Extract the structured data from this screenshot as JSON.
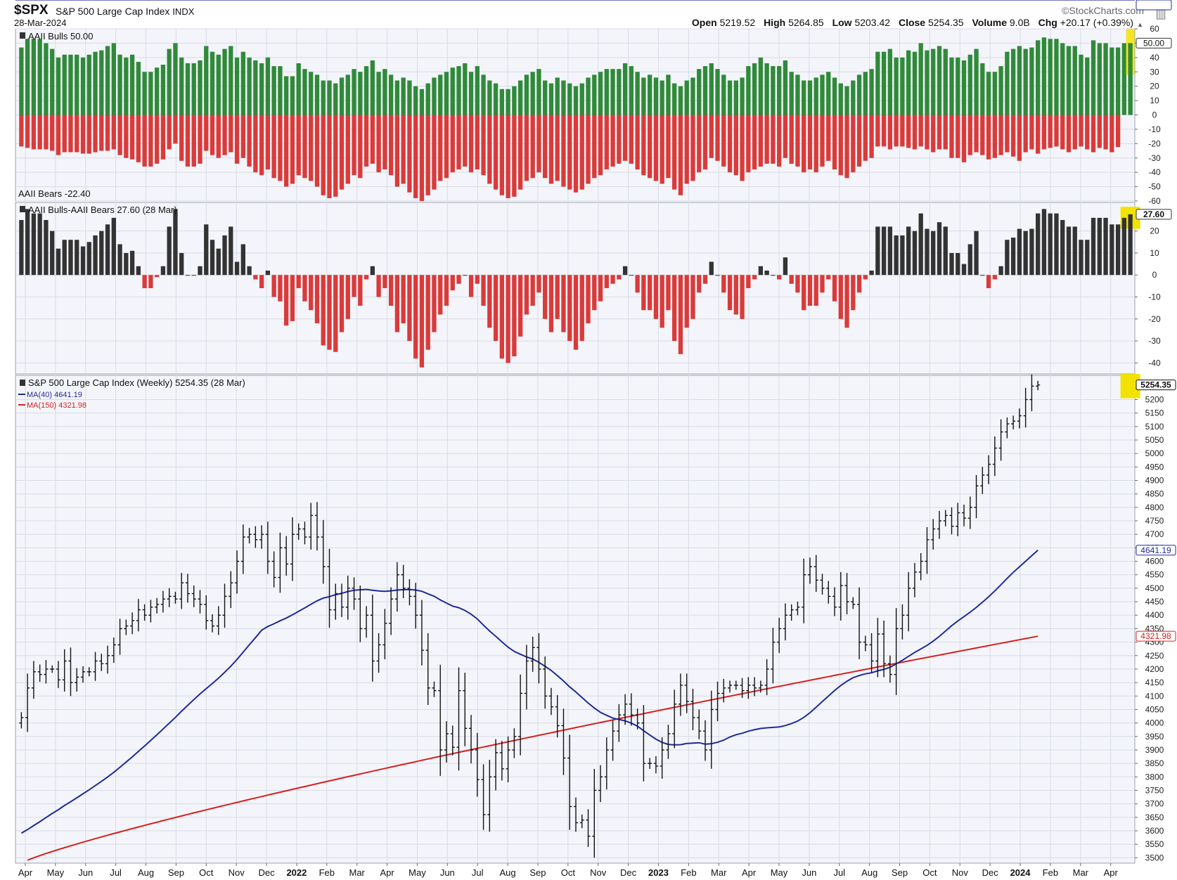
{
  "header": {
    "symbol": "$SPX",
    "name": "S&P 500 Large Cap Index",
    "exchange": "INDX",
    "date": "28-Mar-2024",
    "brand": "©StockCharts.com",
    "open_label": "Open",
    "open": "5219.52",
    "high_label": "High",
    "high": "5264.85",
    "low_label": "Low",
    "low": "5203.42",
    "close_label": "Close",
    "close": "5254.35",
    "volume_label": "Volume",
    "volume": "9.0B",
    "chg_label": "Chg",
    "chg": "+20.17 (+0.39%)"
  },
  "colors": {
    "bulls": "#2f8a3a",
    "bears": "#d93b3b",
    "spread_pos": "#333333",
    "spread_neg": "#d93b3b",
    "ma40": "#1f2a9c",
    "ma150": "#d62020",
    "highlight": "#f2e200",
    "panel_bg": "#f4f5fa",
    "grid": "#d8dbe6"
  },
  "chart_data": [
    {
      "type": "bar",
      "panel": "sentiment",
      "legend": [
        "AAII Bulls 50.00",
        "AAII Bears -22.40"
      ],
      "ylim": [
        -60,
        60
      ],
      "yticks": [
        60,
        50,
        40,
        30,
        20,
        10,
        0,
        -10,
        -20,
        -30,
        -40,
        -50,
        -60
      ],
      "last_labels": [
        "50.00",
        "-22.40"
      ],
      "x": "weekly, Apr 2021 – Mar 2024",
      "series": [
        {
          "name": "AAII Bulls",
          "values": [
            47,
            53,
            53,
            53,
            50,
            46,
            40,
            42,
            42,
            42,
            40,
            42,
            44,
            45,
            48,
            50,
            42,
            40,
            42,
            37,
            30,
            30,
            33,
            35,
            46,
            50,
            40,
            36,
            36,
            38,
            48,
            44,
            42,
            46,
            48,
            40,
            44,
            40,
            38,
            36,
            40,
            34,
            34,
            27,
            27,
            36,
            32,
            30,
            28,
            24,
            24,
            22,
            26,
            28,
            32,
            30,
            34,
            38,
            30,
            32,
            28,
            24,
            26,
            24,
            20,
            18,
            22,
            26,
            28,
            30,
            33,
            34,
            36,
            30,
            34,
            28,
            24,
            22,
            18,
            18,
            20,
            24,
            28,
            30,
            32,
            24,
            22,
            26,
            24,
            22,
            20,
            22,
            26,
            28,
            30,
            32,
            32,
            32,
            36,
            34,
            30,
            26,
            28,
            26,
            24,
            28,
            22,
            20,
            24,
            26,
            32,
            34,
            36,
            32,
            28,
            24,
            24,
            26,
            34,
            36,
            40,
            36,
            34,
            34,
            38,
            30,
            28,
            24,
            24,
            26,
            28,
            30,
            26,
            22,
            20,
            24,
            28,
            30,
            32,
            44,
            44,
            46,
            40,
            40,
            45,
            44,
            50,
            45,
            46,
            48,
            46,
            40,
            40,
            38,
            42,
            46,
            36,
            30,
            30,
            34,
            44,
            46,
            48,
            46,
            47,
            52,
            54,
            53,
            53,
            50,
            48,
            48,
            42,
            40,
            52,
            50,
            50,
            47,
            47,
            50,
            50
          ],
          "note": "approximate weekly readings"
        },
        {
          "name": "AAII Bears",
          "values": [
            -22,
            -23,
            -24,
            -24,
            -24,
            -25,
            -28,
            -26,
            -26,
            -26,
            -27,
            -27,
            -26,
            -25,
            -25,
            -24,
            -28,
            -30,
            -31,
            -33,
            -36,
            -36,
            -34,
            -31,
            -24,
            -20,
            -32,
            -36,
            -36,
            -34,
            -25,
            -28,
            -30,
            -28,
            -26,
            -34,
            -30,
            -36,
            -40,
            -42,
            -38,
            -44,
            -46,
            -50,
            -48,
            -42,
            -44,
            -46,
            -50,
            -56,
            -58,
            -57,
            -52,
            -48,
            -42,
            -44,
            -36,
            -34,
            -40,
            -38,
            -42,
            -50,
            -48,
            -54,
            -58,
            -60,
            -56,
            -52,
            -46,
            -44,
            -40,
            -38,
            -36,
            -40,
            -38,
            -42,
            -48,
            -52,
            -56,
            -58,
            -57,
            -52,
            -46,
            -44,
            -40,
            -44,
            -48,
            -46,
            -50,
            -52,
            -54,
            -52,
            -48,
            -44,
            -42,
            -38,
            -36,
            -34,
            -32,
            -34,
            -38,
            -42,
            -44,
            -46,
            -48,
            -44,
            -52,
            -56,
            -48,
            -46,
            -40,
            -38,
            -30,
            -32,
            -36,
            -40,
            -42,
            -46,
            -40,
            -38,
            -36,
            -34,
            -34,
            -36,
            -30,
            -34,
            -36,
            -40,
            -38,
            -40,
            -36,
            -32,
            -38,
            -42,
            -44,
            -40,
            -36,
            -32,
            -30,
            -22,
            -22,
            -24,
            -22,
            -22,
            -23,
            -24,
            -22,
            -24,
            -26,
            -24,
            -24,
            -30,
            -30,
            -33,
            -28,
            -26,
            -28,
            -31,
            -30,
            -28,
            -26,
            -29,
            -32,
            -26,
            -24,
            -27,
            -24,
            -23,
            -22,
            -24,
            -26,
            -24,
            -22,
            -24,
            -26,
            -23,
            -24,
            -26,
            -22.4
          ]
        }
      ]
    },
    {
      "type": "bar",
      "panel": "spread",
      "legend": [
        "AAII Bulls-AAII Bears 27.60 (28 Mar)"
      ],
      "ylim": [
        -45,
        33
      ],
      "yticks": [
        20,
        10,
        0,
        -10,
        -20,
        -30,
        -40
      ],
      "last_label": "27.60",
      "series": [
        {
          "name": "AAII Bulls-AAII Bears",
          "values": [
            25,
            30,
            28,
            28,
            25,
            20,
            12,
            16,
            16,
            16,
            13,
            15,
            18,
            20,
            23,
            26,
            14,
            10,
            11,
            4,
            -6,
            -6,
            -1,
            4,
            22,
            30,
            10,
            0,
            0,
            4,
            23,
            16,
            12,
            18,
            22,
            6,
            14,
            4,
            -2,
            -6,
            2,
            -10,
            -12,
            -23,
            -21,
            -6,
            -12,
            -16,
            -22,
            -32,
            -34,
            -35,
            -26,
            -20,
            -10,
            -14,
            -2,
            4,
            -10,
            -6,
            -14,
            -26,
            -22,
            -30,
            -38,
            -42,
            -34,
            -26,
            -18,
            -14,
            -7,
            -4,
            0,
            -10,
            -4,
            -14,
            -24,
            -30,
            -38,
            -40,
            -37,
            -28,
            -18,
            -14,
            -8,
            -20,
            -26,
            -20,
            -26,
            -30,
            -34,
            -30,
            -22,
            -16,
            -12,
            -6,
            -4,
            -2,
            4,
            0,
            -8,
            -16,
            -16,
            -20,
            -24,
            -16,
            -30,
            -36,
            -24,
            -20,
            -8,
            -4,
            6,
            0,
            -8,
            -16,
            -18,
            -20,
            -6,
            -2,
            4,
            2,
            0,
            -2,
            8,
            -4,
            -8,
            -16,
            -14,
            -14,
            -8,
            -2,
            -12,
            -20,
            -24,
            -16,
            -8,
            -2,
            2,
            22,
            22,
            22,
            18,
            18,
            22,
            20,
            28,
            21,
            20,
            24,
            22,
            10,
            10,
            5,
            14,
            20,
            0,
            -6,
            -2,
            4,
            16,
            17,
            21,
            20,
            21,
            28,
            30,
            28,
            28,
            25,
            22,
            22,
            16,
            16,
            26,
            26,
            26,
            23,
            23,
            26,
            27.6
          ]
        }
      ]
    },
    {
      "type": "ohlc",
      "panel": "price",
      "legend": [
        "S&P 500 Large Cap Index (Weekly) 5254.35 (28 Mar)",
        "MA(40) 4641.19",
        "MA(150) 4321.98"
      ],
      "ylim": [
        3480,
        5290
      ],
      "yticks": [
        5200,
        5150,
        5100,
        5050,
        5000,
        4950,
        4900,
        4850,
        4800,
        4750,
        4700,
        4650,
        4600,
        4550,
        4500,
        4450,
        4400,
        4350,
        4300,
        4250,
        4200,
        4150,
        4100,
        4050,
        4000,
        3950,
        3900,
        3850,
        3800,
        3750,
        3700,
        3650,
        3600,
        3550,
        3500
      ],
      "last_labels": {
        "close": "5254.35",
        "ma40": "4641.19",
        "ma150": "4321.98"
      },
      "close": [
        4020,
        4130,
        4190,
        4180,
        4200,
        4200,
        4160,
        4230,
        4150,
        4170,
        4190,
        4190,
        4230,
        4220,
        4250,
        4290,
        4350,
        4360,
        4380,
        4420,
        4400,
        4430,
        4440,
        4460,
        4470,
        4460,
        4520,
        4480,
        4460,
        4440,
        4380,
        4360,
        4400,
        4470,
        4520,
        4600,
        4690,
        4700,
        4680,
        4700,
        4600,
        4540,
        4650,
        4590,
        4700,
        4720,
        4690,
        4770,
        4690,
        4580,
        4420,
        4480,
        4430,
        4500,
        4460,
        4350,
        4400,
        4230,
        4290,
        4370,
        4460,
        4550,
        4500,
        4470,
        4400,
        4270,
        4130,
        4120,
        3900,
        3960,
        3910,
        4120,
        3980,
        3900,
        3790,
        3660,
        3800,
        3890,
        3830,
        3900,
        3950,
        4110,
        4230,
        4280,
        4200,
        4100,
        4060,
        3990,
        3870,
        3690,
        3630,
        3640,
        3580,
        3750,
        3800,
        3900,
        3970,
        4030,
        4070,
        4030,
        4000,
        3850,
        3850,
        3840,
        3900,
        3960,
        4070,
        4140,
        4080,
        4020,
        3970,
        3900,
        4050,
        4110,
        4130,
        4140,
        4140,
        4120,
        4140,
        4130,
        4140,
        4200,
        4300,
        4350,
        4400,
        4420,
        4430,
        4550,
        4580,
        4530,
        4500,
        4470,
        4430,
        4510,
        4450,
        4440,
        4300,
        4290,
        4230,
        4330,
        4220,
        4180,
        4350,
        4400,
        4500,
        4560,
        4600,
        4680,
        4720,
        4750,
        4770,
        4730,
        4780,
        4760,
        4800,
        4880,
        4920,
        4960,
        5020,
        5080,
        5110,
        5120,
        5140,
        5200,
        5250,
        5254.35
      ],
      "ma40": {
        "start": 3580,
        "end": 4641.19
      },
      "ma150": {
        "start": 3480,
        "end": 4321.98
      }
    }
  ],
  "x_axis": {
    "labels": [
      "Apr",
      "May",
      "Jun",
      "Jul",
      "Aug",
      "Sep",
      "Oct",
      "Nov",
      "Dec",
      "2022",
      "Feb",
      "Mar",
      "Apr",
      "May",
      "Jun",
      "Jul",
      "Aug",
      "Sep",
      "Oct",
      "Nov",
      "Dec",
      "2023",
      "Feb",
      "Mar",
      "Apr",
      "May",
      "Jun",
      "Jul",
      "Aug",
      "Sep",
      "Oct",
      "Nov",
      "Dec",
      "2024",
      "Feb",
      "Mar",
      "Apr"
    ],
    "bold": [
      "2022",
      "2023",
      "2024"
    ]
  }
}
